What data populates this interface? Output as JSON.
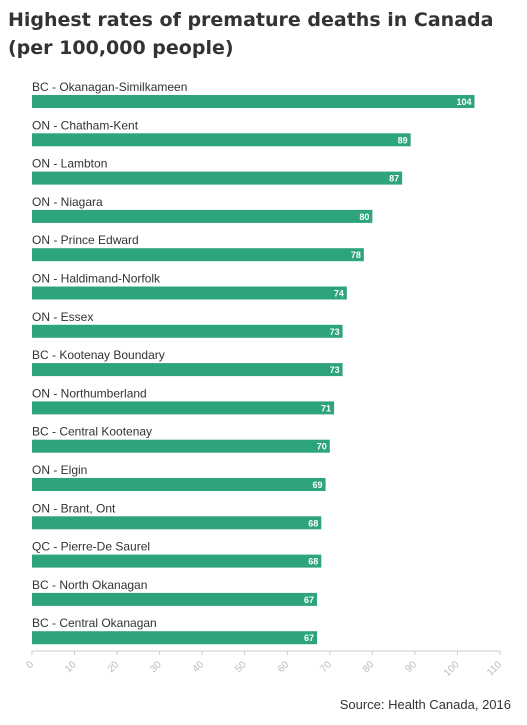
{
  "title": "Highest rates of premature deaths in Canada (per 100,000 people)",
  "source": "Source: Health Canada, 2016",
  "colors": {
    "bar": "#2ea47b",
    "axis": "#cccccc",
    "tick_label": "#bbbbbb",
    "text": "#333333"
  },
  "chart_data": {
    "type": "bar",
    "orientation": "horizontal",
    "title": "Highest rates of premature deaths in Canada (per 100,000 people)",
    "categories": [
      "BC - Okanagan-Similkameen",
      "ON - Chatham-Kent",
      "ON - Lambton",
      "ON - Niagara",
      "ON - Prince Edward",
      "ON - Haldimand-Norfolk",
      "ON - Essex",
      "BC - Kootenay Boundary",
      "ON - Northumberland",
      "BC - Central Kootenay",
      "ON - Elgin",
      "ON - Brant, Ont",
      "QC - Pierre-De Saurel",
      "BC - North Okanagan",
      "BC - Central Okanagan"
    ],
    "values": [
      104,
      89,
      87,
      80,
      78,
      74,
      73,
      73,
      71,
      70,
      69,
      68,
      68,
      67,
      67
    ],
    "xlim": [
      0,
      110
    ],
    "xticks": [
      0,
      10,
      20,
      30,
      40,
      50,
      60,
      70,
      80,
      90,
      100,
      110
    ],
    "grid": false,
    "data_labels": true
  }
}
